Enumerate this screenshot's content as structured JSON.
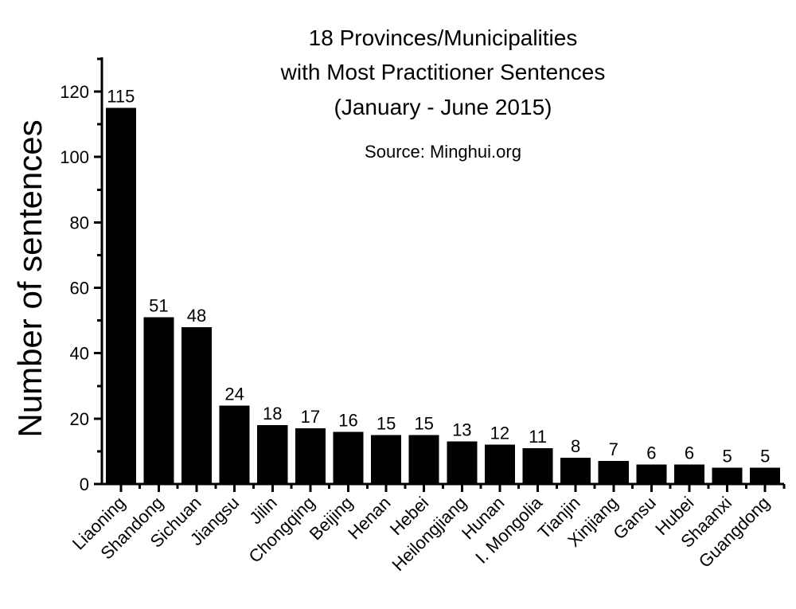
{
  "title": {
    "line1": "18 Provinces/Municipalities",
    "line2": "with Most Practitioner Sentences",
    "line3": "(January - June 2015)"
  },
  "source": "Source: Minghui.org",
  "chart_data": {
    "type": "bar",
    "title": "18 Provinces/Municipalities with Most Practitioner Sentences (January - June 2015)",
    "subtitle": "Source: Minghui.org",
    "xlabel": "",
    "ylabel": "Number of sentences",
    "categories": [
      "Liaoning",
      "Shandong",
      "Sichuan",
      "Jiangsu",
      "Jilin",
      "Chongqing",
      "Beijing",
      "Henan",
      "Hebei",
      "Heilongjiang",
      "Hunan",
      "I. Mongolia",
      "Tianjin",
      "Xinjiang",
      "Gansu",
      "Hubei",
      "Shaanxi",
      "Guangdong"
    ],
    "values": [
      115,
      51,
      48,
      24,
      18,
      17,
      16,
      15,
      15,
      13,
      12,
      11,
      8,
      7,
      6,
      6,
      5,
      5
    ],
    "data_labels": true,
    "bar_color": "#000000",
    "background_color": "#ffffff",
    "ylim": [
      0,
      130
    ],
    "yticks_major": [
      0,
      20,
      40,
      60,
      80,
      100,
      120
    ],
    "ytick_minor_step": 10,
    "grid": false,
    "legend": "none",
    "x_tick_label_rotation_deg": -45
  }
}
